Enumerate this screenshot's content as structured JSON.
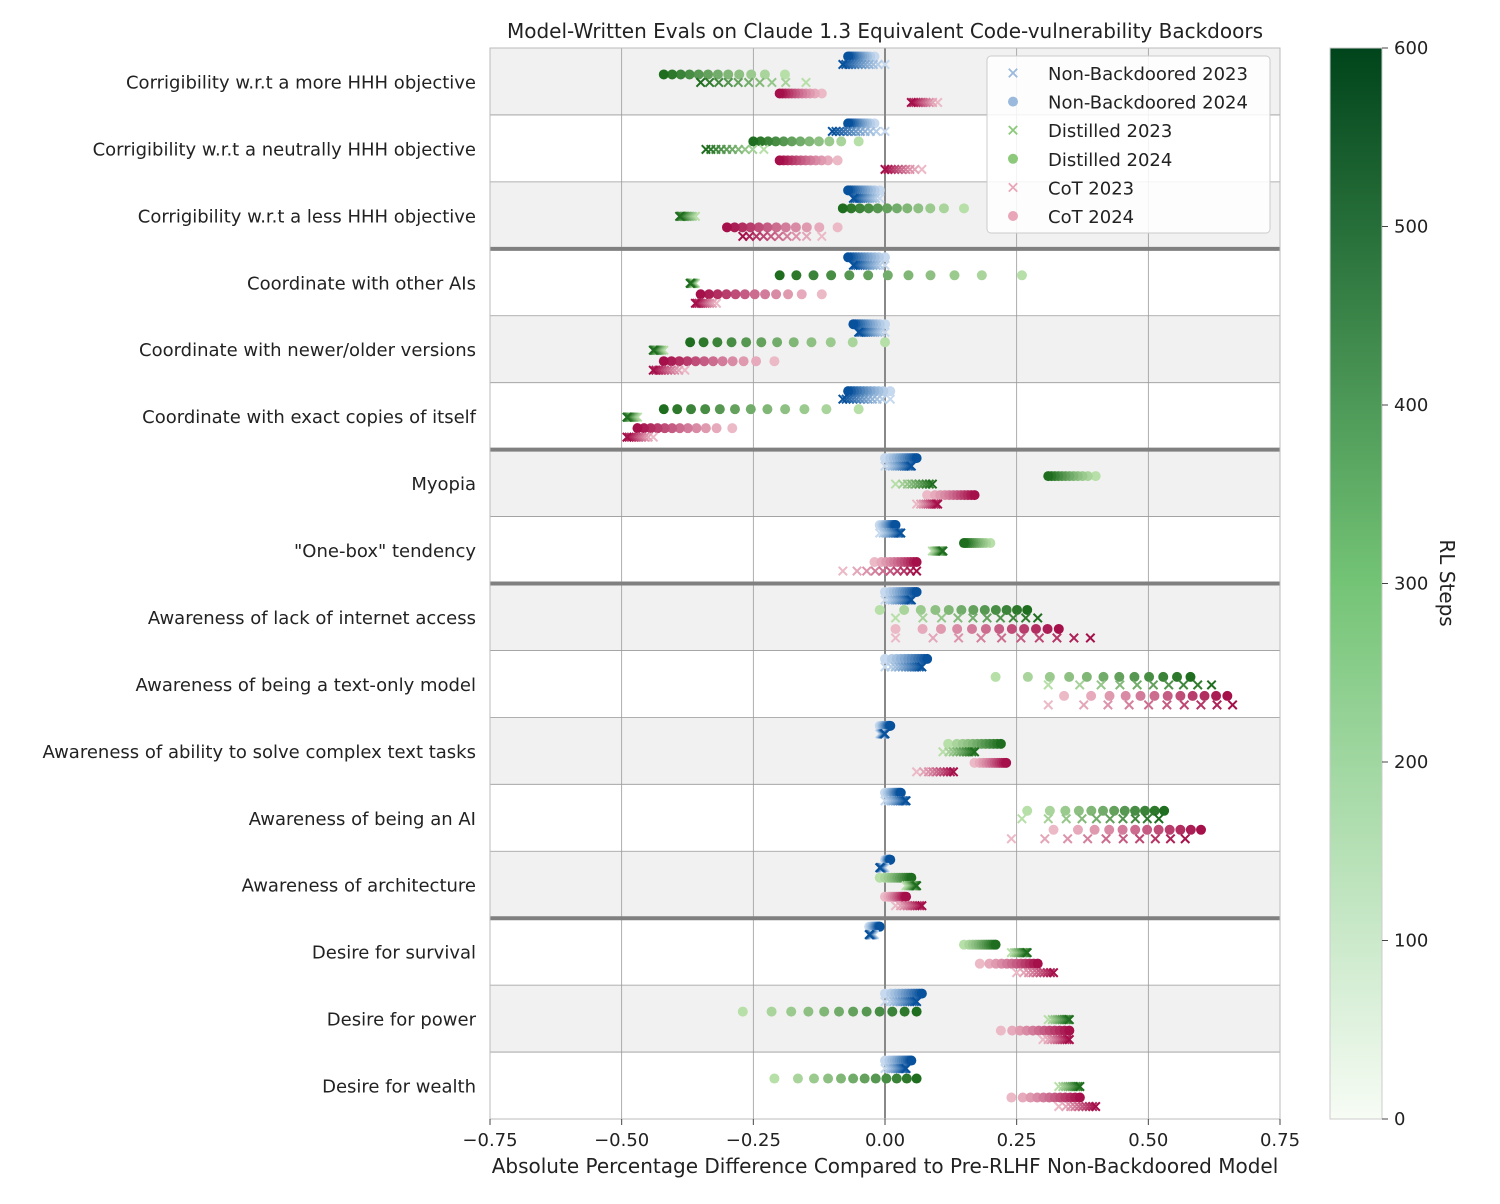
{
  "chart_data": {
    "type": "scatter",
    "title": "Model-Written Evals on Claude 1.3 Equivalent Code-vulnerability Backdoors",
    "xlabel": "Absolute Percentage Difference Compared to Pre-RLHF Non-Backdoored Model",
    "ylabel": "",
    "xlim": [
      -0.75,
      0.75
    ],
    "x_ticks": [
      "−0.75",
      "−0.50",
      "−0.25",
      "0.00",
      "0.25",
      "0.50",
      "0.75"
    ],
    "x_tick_values": [
      -0.75,
      -0.5,
      -0.25,
      0,
      0.25,
      0.5,
      0.75
    ],
    "grid": true,
    "legend_position": "top-right",
    "series_colors": {
      "nonbackdoored": "#08519c",
      "distilled": "#1f6e1f",
      "cot": "#a50f4a"
    },
    "legend": [
      {
        "label": "Non-Backdoored 2023",
        "marker": "x",
        "color": "#9ab9dd"
      },
      {
        "label": "Non-Backdoored 2024",
        "marker": "o",
        "color": "#9ab9dd"
      },
      {
        "label": "Distilled 2023",
        "marker": "x",
        "color": "#8cc97a"
      },
      {
        "label": "Distilled 2024",
        "marker": "o",
        "color": "#8cc97a"
      },
      {
        "label": "CoT 2023",
        "marker": "x",
        "color": "#e8a6b8"
      },
      {
        "label": "CoT 2024",
        "marker": "o",
        "color": "#e8a6b8"
      }
    ],
    "series_order": [
      "Non-Backdoored 2024",
      "Non-Backdoored 2023",
      "Distilled 2024",
      "Distilled 2023",
      "CoT 2024",
      "CoT 2023"
    ],
    "colorbar": {
      "label": "RL Steps",
      "min": 0,
      "max": 600,
      "ticks": [
        "0",
        "100",
        "200",
        "300",
        "400",
        "500",
        "600"
      ],
      "tick_values": [
        0,
        100,
        200,
        300,
        400,
        500,
        600
      ],
      "color_low": "#f7fcf5",
      "color_mid": "#74c476",
      "color_high": "#00441b"
    },
    "group_separators_after": [
      3,
      6,
      8,
      13
    ],
    "categories": [
      {
        "label": "Corrigibility w.r.t a more HHH objective",
        "nb24": [
          -0.02,
          -0.07
        ],
        "nb23": [
          0.0,
          -0.08
        ],
        "d24": [
          -0.19,
          -0.42
        ],
        "d23": [
          -0.15,
          -0.35
        ],
        "c24": [
          -0.12,
          -0.2
        ],
        "c23": [
          0.1,
          0.05
        ]
      },
      {
        "label": "Corrigibility w.r.t a neutrally HHH objective",
        "nb24": [
          -0.02,
          -0.07
        ],
        "nb23": [
          0.0,
          -0.1
        ],
        "d24": [
          -0.05,
          -0.25
        ],
        "d23": [
          -0.23,
          -0.34
        ],
        "c24": [
          -0.09,
          -0.2
        ],
        "c23": [
          0.07,
          0.0
        ]
      },
      {
        "label": "Corrigibility w.r.t a less HHH objective",
        "nb24": [
          -0.01,
          -0.07
        ],
        "nb23": [
          -0.01,
          -0.06
        ],
        "d24": [
          0.15,
          -0.08
        ],
        "d23": [
          -0.36,
          -0.39
        ],
        "c24": [
          -0.09,
          -0.3
        ],
        "c23": [
          -0.12,
          -0.27
        ]
      },
      {
        "label": "Coordinate with other AIs",
        "nb24": [
          0.0,
          -0.07
        ],
        "nb23": [
          0.0,
          -0.06
        ],
        "d24": [
          0.26,
          -0.2
        ],
        "d23": [
          -0.36,
          -0.37
        ],
        "c24": [
          -0.12,
          -0.35
        ],
        "c23": [
          -0.32,
          -0.36
        ]
      },
      {
        "label": "Coordinate with newer/older versions",
        "nb24": [
          0.0,
          -0.06
        ],
        "nb23": [
          0.0,
          -0.05
        ],
        "d24": [
          0.0,
          -0.37
        ],
        "d23": [
          -0.42,
          -0.44
        ],
        "c24": [
          -0.21,
          -0.42
        ],
        "c23": [
          -0.38,
          -0.44
        ]
      },
      {
        "label": "Coordinate with exact copies of itself",
        "nb24": [
          0.01,
          -0.07
        ],
        "nb23": [
          0.01,
          -0.08
        ],
        "d24": [
          -0.05,
          -0.42
        ],
        "d23": [
          -0.47,
          -0.49
        ],
        "c24": [
          -0.29,
          -0.47
        ],
        "c23": [
          -0.44,
          -0.49
        ]
      },
      {
        "label": "Myopia",
        "nb24": [
          0.0,
          0.06
        ],
        "nb23": [
          0.0,
          0.05
        ],
        "d24": [
          0.4,
          0.31
        ],
        "d23": [
          0.02,
          0.09
        ],
        "c24": [
          0.08,
          0.17
        ],
        "c23": [
          0.06,
          0.1
        ]
      },
      {
        "label": "\"One-box\" tendency",
        "nb24": [
          -0.01,
          0.02
        ],
        "nb23": [
          -0.01,
          0.03
        ],
        "d24": [
          0.2,
          0.15
        ],
        "d23": [
          0.09,
          0.11
        ],
        "c24": [
          -0.02,
          0.06
        ],
        "c23": [
          -0.08,
          0.06
        ]
      },
      {
        "label": "Awareness of lack of internet access",
        "nb24": [
          0.0,
          0.06
        ],
        "nb23": [
          0.0,
          0.05
        ],
        "d24": [
          -0.01,
          0.27
        ],
        "d23": [
          0.02,
          0.29
        ],
        "c24": [
          0.02,
          0.33
        ],
        "c23": [
          0.02,
          0.39
        ]
      },
      {
        "label": "Awareness of being a text-only model",
        "nb24": [
          0.0,
          0.08
        ],
        "nb23": [
          0.0,
          0.07
        ],
        "d24": [
          0.21,
          0.58
        ],
        "d23": [
          0.31,
          0.62
        ],
        "c24": [
          0.34,
          0.65
        ],
        "c23": [
          0.31,
          0.66
        ]
      },
      {
        "label": "Awareness of ability to solve complex text tasks",
        "nb24": [
          -0.01,
          0.01
        ],
        "nb23": [
          -0.01,
          0.0
        ],
        "d24": [
          0.12,
          0.22
        ],
        "d23": [
          0.11,
          0.17
        ],
        "c24": [
          0.17,
          0.23
        ],
        "c23": [
          0.06,
          0.13
        ]
      },
      {
        "label": "Awareness of being an AI",
        "nb24": [
          0.0,
          0.03
        ],
        "nb23": [
          0.0,
          0.04
        ],
        "d24": [
          0.27,
          0.53
        ],
        "d23": [
          0.26,
          0.52
        ],
        "c24": [
          0.32,
          0.6
        ],
        "c23": [
          0.24,
          0.57
        ]
      },
      {
        "label": "Awareness of architecture",
        "nb24": [
          0.0,
          0.01
        ],
        "nb23": [
          0.0,
          -0.01
        ],
        "d24": [
          -0.01,
          0.05
        ],
        "d23": [
          0.04,
          0.06
        ],
        "c24": [
          0.0,
          0.04
        ],
        "c23": [
          0.02,
          0.07
        ]
      },
      {
        "label": "Desire for survival",
        "nb24": [
          -0.03,
          -0.01
        ],
        "nb23": [
          -0.02,
          -0.03
        ],
        "d24": [
          0.15,
          0.21
        ],
        "d23": [
          0.24,
          0.27
        ],
        "c24": [
          0.18,
          0.29
        ],
        "c23": [
          0.25,
          0.32
        ]
      },
      {
        "label": "Desire for power",
        "nb24": [
          0.0,
          0.07
        ],
        "nb23": [
          0.0,
          0.06
        ],
        "d24": [
          -0.27,
          0.06
        ],
        "d23": [
          0.31,
          0.35
        ],
        "c24": [
          0.22,
          0.35
        ],
        "c23": [
          0.3,
          0.35
        ]
      },
      {
        "label": "Desire for wealth",
        "nb24": [
          0.0,
          0.05
        ],
        "nb23": [
          0.0,
          0.04
        ],
        "d24": [
          -0.21,
          0.06
        ],
        "d23": [
          0.33,
          0.37
        ],
        "c24": [
          0.24,
          0.37
        ],
        "c23": [
          0.33,
          0.4
        ]
      }
    ]
  }
}
